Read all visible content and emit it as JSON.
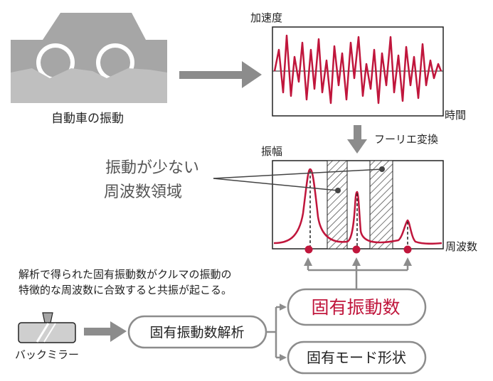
{
  "car": {
    "caption": "自動車の振動"
  },
  "time_chart": {
    "ylabel": "加速度",
    "xlabel": "時間"
  },
  "fourier": {
    "label": "フーリエ変換"
  },
  "spectrum": {
    "ylabel": "振幅",
    "xlabel": "周波数"
  },
  "annotation": {
    "line1": "振動が少ない",
    "line2": "周波数領域"
  },
  "note": {
    "line1": "解析で得られた固有振動数がクルマの振動の",
    "line2": "特徴的な周波数に合致すると共振が起こる。"
  },
  "mirror": {
    "caption": "バックミラー"
  },
  "boxes": {
    "analysis": "固有振動数解析",
    "natural_frequency": "固有振動数",
    "mode_shape": "固有モード形状"
  },
  "colors": {
    "accent": "#c0163c",
    "gray_fill": "#a6a6a6",
    "arrow": "#8c8c8c"
  }
}
